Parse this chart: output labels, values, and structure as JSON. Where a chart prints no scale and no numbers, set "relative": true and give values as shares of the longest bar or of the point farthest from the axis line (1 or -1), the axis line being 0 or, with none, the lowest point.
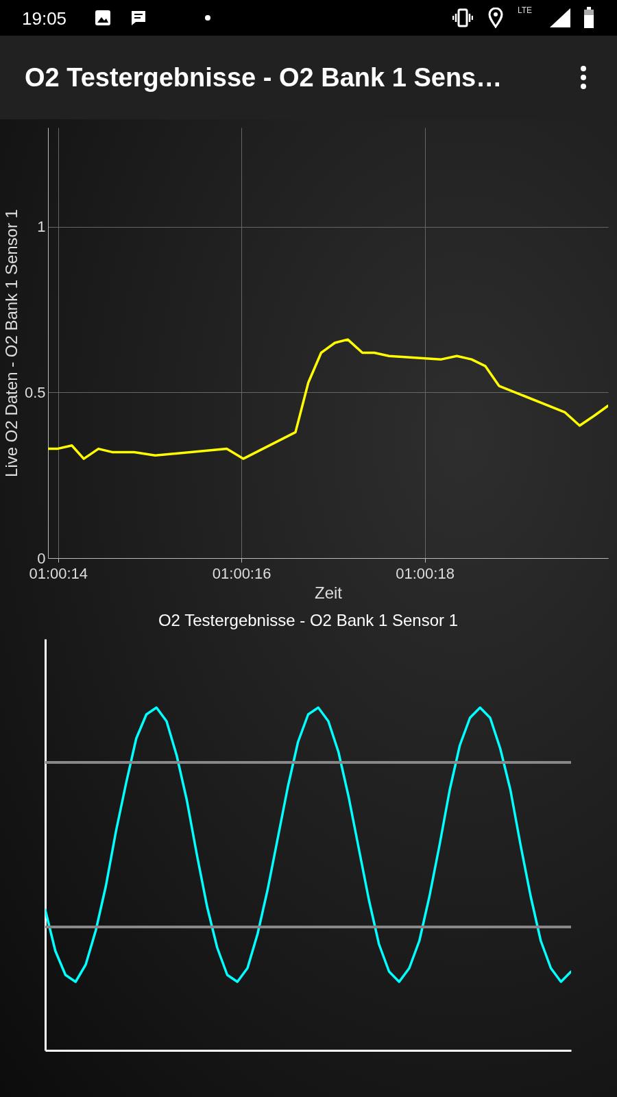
{
  "chart_data": [
    {
      "type": "line",
      "title": "O2 Testergebnisse - O2 Bank 1 Sens…",
      "xlabel": "Zeit",
      "ylabel": "Live O2 Daten - O2 Bank 1 Sensor 1",
      "annotations": [
        "19:05",
        "LTE"
      ],
      "x": [
        1.0038583,
        1.0038861,
        1.0039306,
        1.0039667,
        1.0040111,
        1.0040528,
        1.0041194,
        1.0041833,
        1.0044,
        1.00445,
        1.0046083,
        1.0046472,
        1.0046861,
        1.0047278,
        1.0047667,
        1.0048111,
        1.0048472,
        1.0048917,
        1.00505,
        1.0050972,
        1.0051417,
        1.0051833,
        1.005225,
        1.005425,
        1.0054694,
        1.0055139,
        1.0055556
      ],
      "series": [
        {
          "color": "#ffff00",
          "values": [
            0.33,
            0.33,
            0.34,
            0.3,
            0.33,
            0.32,
            0.32,
            0.31,
            0.33,
            0.3,
            0.38,
            0.53,
            0.62,
            0.65,
            0.66,
            0.62,
            0.62,
            0.61,
            0.6,
            0.61,
            0.6,
            0.58,
            0.52,
            0.44,
            0.4,
            0.43,
            0.46
          ]
        }
      ],
      "xlim": [
        1.0038583,
        1.0055556
      ],
      "xticks": [
        {
          "value": 1.0038889,
          "label": "01:00:14"
        },
        {
          "value": 1.0044444,
          "label": "01:00:16"
        },
        {
          "value": 1.005,
          "label": "01:00:18"
        }
      ],
      "ylim": [
        0,
        1.3
      ],
      "yticks": [
        0,
        0.5,
        1
      ],
      "grid": true
    },
    {
      "type": "line",
      "title": "O2 Testergebnisse - O2 Bank 1 Sensor 1",
      "relative": true,
      "categories": [
        null,
        null,
        null,
        null,
        null,
        null,
        null,
        null,
        null,
        null,
        null,
        null,
        null,
        null,
        null,
        null,
        null,
        null,
        null,
        null,
        null,
        null,
        null,
        null,
        null,
        null,
        null,
        null,
        null,
        null,
        null,
        null,
        null,
        null,
        null,
        null,
        null,
        null,
        null,
        null,
        null,
        null,
        null,
        null,
        null,
        null,
        null,
        null,
        null,
        null,
        null,
        null,
        null
      ],
      "series": [
        {
          "color": "#00ffff",
          "values": [
            0.41,
            0.29,
            0.22,
            0.2,
            0.25,
            0.35,
            0.48,
            0.64,
            0.78,
            0.91,
            0.98,
            1,
            0.96,
            0.86,
            0.73,
            0.57,
            0.42,
            0.3,
            0.22,
            0.2,
            0.24,
            0.34,
            0.47,
            0.62,
            0.77,
            0.9,
            0.98,
            1,
            0.96,
            0.87,
            0.74,
            0.59,
            0.44,
            0.31,
            0.23,
            0.2,
            0.24,
            0.32,
            0.45,
            0.6,
            0.76,
            0.89,
            0.97,
            1,
            0.97,
            0.88,
            0.76,
            0.6,
            0.45,
            0.32,
            0.24,
            0.2,
            0.23
          ]
        }
      ],
      "ref_lines": [
        {
          "axis": "y",
          "value": 0.84,
          "color": "#888888"
        },
        {
          "axis": "y",
          "value": 0.36,
          "color": "#888888"
        }
      ]
    }
  ]
}
